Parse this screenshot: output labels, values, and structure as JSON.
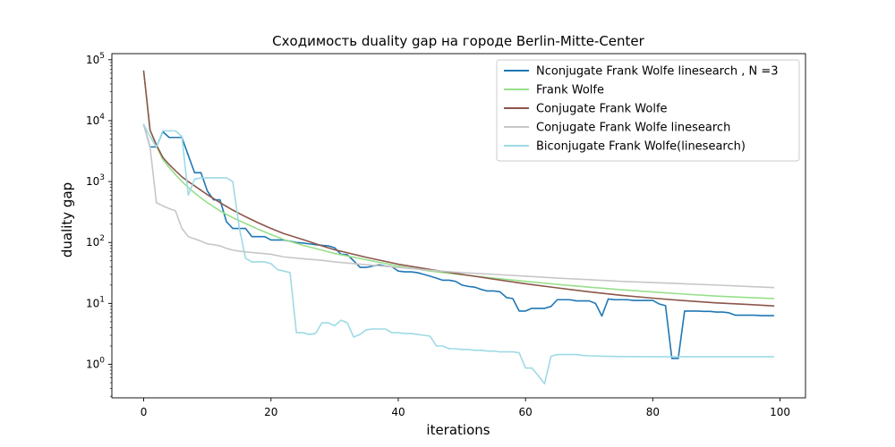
{
  "chart_data": {
    "type": "line",
    "title": "Сходимость duality gap на городе Berlin-Mitte-Center",
    "xlabel": "iterations",
    "ylabel": "duality gap",
    "xlim": [
      -5,
      104
    ],
    "ylim_log10": [
      -0.55,
      5.1
    ],
    "yscale": "log",
    "grid": false,
    "legend_position": "top-right",
    "x_ticks": [
      {
        "value": 0,
        "label": "0"
      },
      {
        "value": 20,
        "label": "20"
      },
      {
        "value": 40,
        "label": "40"
      },
      {
        "value": 60,
        "label": "60"
      },
      {
        "value": 80,
        "label": "80"
      },
      {
        "value": 100,
        "label": "100"
      }
    ],
    "y_ticks": [
      {
        "exp": 0,
        "base": "10",
        "sup": "0"
      },
      {
        "exp": 1,
        "base": "10",
        "sup": "1"
      },
      {
        "exp": 2,
        "base": "10",
        "sup": "2"
      },
      {
        "exp": 3,
        "base": "10",
        "sup": "3"
      },
      {
        "exp": 4,
        "base": "10",
        "sup": "4"
      },
      {
        "exp": 5,
        "base": "10",
        "sup": "5"
      }
    ],
    "series": [
      {
        "name": "Nconjugate Frank Wolfe linesearch , N =3",
        "color": "#1f77b4",
        "points": [
          [
            0,
            8600
          ],
          [
            1,
            3700
          ],
          [
            2,
            3700
          ],
          [
            3,
            6600
          ],
          [
            4,
            5300
          ],
          [
            5,
            5300
          ],
          [
            6,
            5300
          ],
          [
            7,
            2700
          ],
          [
            8,
            1400
          ],
          [
            9,
            1400
          ],
          [
            10,
            700
          ],
          [
            11,
            500
          ],
          [
            12,
            500
          ],
          [
            13,
            220
          ],
          [
            14,
            170
          ],
          [
            15,
            170
          ],
          [
            16,
            170
          ],
          [
            17,
            125
          ],
          [
            18,
            125
          ],
          [
            19,
            125
          ],
          [
            20,
            110
          ],
          [
            21,
            110
          ],
          [
            22,
            110
          ],
          [
            23,
            105
          ],
          [
            24,
            100
          ],
          [
            25,
            98
          ],
          [
            26,
            95
          ],
          [
            27,
            92
          ],
          [
            28,
            90
          ],
          [
            29,
            88
          ],
          [
            30,
            82
          ],
          [
            31,
            64
          ],
          [
            32,
            63
          ],
          [
            33,
            50
          ],
          [
            34,
            39
          ],
          [
            35,
            39
          ],
          [
            36,
            41
          ],
          [
            37,
            43
          ],
          [
            38,
            41
          ],
          [
            39,
            40
          ],
          [
            40,
            34
          ],
          [
            41,
            33
          ],
          [
            42,
            33
          ],
          [
            43,
            32
          ],
          [
            44,
            30
          ],
          [
            45,
            28
          ],
          [
            46,
            26
          ],
          [
            47,
            24
          ],
          [
            48,
            24
          ],
          [
            49,
            23
          ],
          [
            50,
            20
          ],
          [
            51,
            19
          ],
          [
            52,
            18.5
          ],
          [
            53,
            17
          ],
          [
            54,
            16
          ],
          [
            55,
            16
          ],
          [
            56,
            15.5
          ],
          [
            57,
            12.5
          ],
          [
            58,
            12
          ],
          [
            59,
            7.5
          ],
          [
            60,
            7.5
          ],
          [
            61,
            8.3
          ],
          [
            62,
            8.3
          ],
          [
            63,
            8.3
          ],
          [
            64,
            8.9
          ],
          [
            65,
            11.5
          ],
          [
            66,
            11.5
          ],
          [
            67,
            11.5
          ],
          [
            68,
            11
          ],
          [
            69,
            11
          ],
          [
            70,
            11
          ],
          [
            71,
            10
          ],
          [
            72,
            6.2
          ],
          [
            73,
            11.8
          ],
          [
            74,
            11.5
          ],
          [
            75,
            11.5
          ],
          [
            76,
            11.5
          ],
          [
            77,
            11.2
          ],
          [
            78,
            11.2
          ],
          [
            79,
            11.2
          ],
          [
            80,
            11.2
          ],
          [
            81,
            9.8
          ],
          [
            82,
            9.2
          ],
          [
            83,
            1.25
          ],
          [
            84,
            1.25
          ],
          [
            85,
            7.5
          ],
          [
            86,
            7.5
          ],
          [
            87,
            7.5
          ],
          [
            88,
            7.4
          ],
          [
            89,
            7.4
          ],
          [
            90,
            7.2
          ],
          [
            91,
            7.2
          ],
          [
            92,
            7.0
          ],
          [
            93,
            6.4
          ],
          [
            94,
            6.4
          ],
          [
            95,
            6.4
          ],
          [
            96,
            6.4
          ],
          [
            97,
            6.3
          ],
          [
            98,
            6.3
          ],
          [
            99,
            6.3
          ]
        ]
      },
      {
        "name": "Frank Wolfe",
        "color": "#98df8a",
        "points": [
          [
            0,
            65000
          ],
          [
            1,
            7000
          ],
          [
            2,
            3800
          ],
          [
            3,
            2300
          ],
          [
            4,
            1700
          ],
          [
            5,
            1300
          ],
          [
            6,
            1000
          ],
          [
            7,
            800
          ],
          [
            8,
            650
          ],
          [
            9,
            540
          ],
          [
            10,
            450
          ],
          [
            12,
            330
          ],
          [
            14,
            255
          ],
          [
            16,
            205
          ],
          [
            18,
            165
          ],
          [
            20,
            135
          ],
          [
            22,
            112
          ],
          [
            25,
            90
          ],
          [
            28,
            75
          ],
          [
            30,
            66
          ],
          [
            35,
            52
          ],
          [
            40,
            41
          ],
          [
            45,
            34
          ],
          [
            50,
            29.5
          ],
          [
            55,
            26
          ],
          [
            60,
            23
          ],
          [
            65,
            20.5
          ],
          [
            70,
            18.5
          ],
          [
            75,
            16.8
          ],
          [
            80,
            15.4
          ],
          [
            85,
            14.2
          ],
          [
            90,
            13.2
          ],
          [
            95,
            12.5
          ],
          [
            99,
            12.0
          ]
        ]
      },
      {
        "name": "Conjugate Frank Wolfe",
        "color": "#8c564b",
        "points": [
          [
            0,
            65000
          ],
          [
            1,
            7000
          ],
          [
            2,
            4000
          ],
          [
            3,
            2500
          ],
          [
            4,
            1900
          ],
          [
            5,
            1500
          ],
          [
            6,
            1200
          ],
          [
            7,
            1000
          ],
          [
            8,
            850
          ],
          [
            9,
            720
          ],
          [
            10,
            610
          ],
          [
            12,
            450
          ],
          [
            14,
            340
          ],
          [
            16,
            265
          ],
          [
            18,
            210
          ],
          [
            20,
            170
          ],
          [
            22,
            140
          ],
          [
            25,
            112
          ],
          [
            28,
            88
          ],
          [
            30,
            76
          ],
          [
            35,
            57
          ],
          [
            40,
            44
          ],
          [
            45,
            36
          ],
          [
            50,
            30
          ],
          [
            55,
            25
          ],
          [
            60,
            21
          ],
          [
            65,
            18
          ],
          [
            70,
            15.5
          ],
          [
            75,
            13.6
          ],
          [
            80,
            12.2
          ],
          [
            85,
            11.1
          ],
          [
            90,
            10.2
          ],
          [
            95,
            9.6
          ],
          [
            99,
            9.1
          ]
        ]
      },
      {
        "name": "Conjugate Frank Wolfe linesearch",
        "color": "#c7c7c7",
        "points": [
          [
            0,
            8600
          ],
          [
            1,
            3700
          ],
          [
            2,
            450
          ],
          [
            3,
            400
          ],
          [
            4,
            360
          ],
          [
            5,
            330
          ],
          [
            6,
            170
          ],
          [
            7,
            125
          ],
          [
            8,
            115
          ],
          [
            9,
            105
          ],
          [
            10,
            95
          ],
          [
            11,
            92
          ],
          [
            12,
            88
          ],
          [
            13,
            80
          ],
          [
            14,
            75
          ],
          [
            15,
            72
          ],
          [
            16,
            70
          ],
          [
            18,
            67
          ],
          [
            20,
            64
          ],
          [
            22,
            58
          ],
          [
            25,
            54
          ],
          [
            28,
            51
          ],
          [
            30,
            48
          ],
          [
            35,
            43
          ],
          [
            40,
            39
          ],
          [
            45,
            35
          ],
          [
            50,
            32
          ],
          [
            55,
            30
          ],
          [
            60,
            28
          ],
          [
            65,
            26
          ],
          [
            70,
            24.5
          ],
          [
            75,
            23
          ],
          [
            80,
            22
          ],
          [
            85,
            21
          ],
          [
            90,
            20
          ],
          [
            95,
            19
          ],
          [
            99,
            18.2
          ]
        ]
      },
      {
        "name": "Biconjugate Frank Wolfe(linesearch)",
        "color": "#9edae5",
        "points": [
          [
            0,
            8600
          ],
          [
            1,
            5500
          ],
          [
            2,
            3700
          ],
          [
            3,
            6800
          ],
          [
            4,
            6800
          ],
          [
            5,
            6800
          ],
          [
            6,
            5500
          ],
          [
            7,
            600
          ],
          [
            8,
            1100
          ],
          [
            9,
            1150
          ],
          [
            10,
            1150
          ],
          [
            11,
            1150
          ],
          [
            12,
            1150
          ],
          [
            13,
            1150
          ],
          [
            14,
            1000
          ],
          [
            15,
            180
          ],
          [
            16,
            55
          ],
          [
            17,
            48
          ],
          [
            18,
            48
          ],
          [
            19,
            48
          ],
          [
            20,
            45
          ],
          [
            21,
            36
          ],
          [
            22,
            34
          ],
          [
            23,
            32
          ],
          [
            24,
            3.3
          ],
          [
            25,
            3.3
          ],
          [
            26,
            3.1
          ],
          [
            27,
            3.2
          ],
          [
            28,
            4.8
          ],
          [
            29,
            4.8
          ],
          [
            30,
            4.3
          ],
          [
            31,
            5.3
          ],
          [
            32,
            4.8
          ],
          [
            33,
            2.8
          ],
          [
            34,
            3.1
          ],
          [
            35,
            3.7
          ],
          [
            36,
            3.8
          ],
          [
            37,
            3.8
          ],
          [
            38,
            3.8
          ],
          [
            39,
            3.3
          ],
          [
            40,
            3.3
          ],
          [
            41,
            3.2
          ],
          [
            42,
            3.2
          ],
          [
            43,
            3.1
          ],
          [
            44,
            3.0
          ],
          [
            45,
            2.9
          ],
          [
            46,
            2.0
          ],
          [
            47,
            2.0
          ],
          [
            48,
            1.8
          ],
          [
            49,
            1.8
          ],
          [
            50,
            1.75
          ],
          [
            51,
            1.75
          ],
          [
            52,
            1.7
          ],
          [
            53,
            1.7
          ],
          [
            54,
            1.65
          ],
          [
            55,
            1.65
          ],
          [
            56,
            1.6
          ],
          [
            57,
            1.6
          ],
          [
            58,
            1.6
          ],
          [
            59,
            1.55
          ],
          [
            60,
            0.87
          ],
          [
            61,
            0.87
          ],
          [
            62,
            0.65
          ],
          [
            63,
            0.48
          ],
          [
            64,
            1.35
          ],
          [
            65,
            1.45
          ],
          [
            66,
            1.45
          ],
          [
            67,
            1.45
          ],
          [
            68,
            1.45
          ],
          [
            69,
            1.4
          ],
          [
            70,
            1.38
          ],
          [
            72,
            1.36
          ],
          [
            75,
            1.34
          ],
          [
            80,
            1.33
          ],
          [
            85,
            1.33
          ],
          [
            90,
            1.33
          ],
          [
            95,
            1.33
          ],
          [
            99,
            1.33
          ]
        ]
      }
    ]
  }
}
